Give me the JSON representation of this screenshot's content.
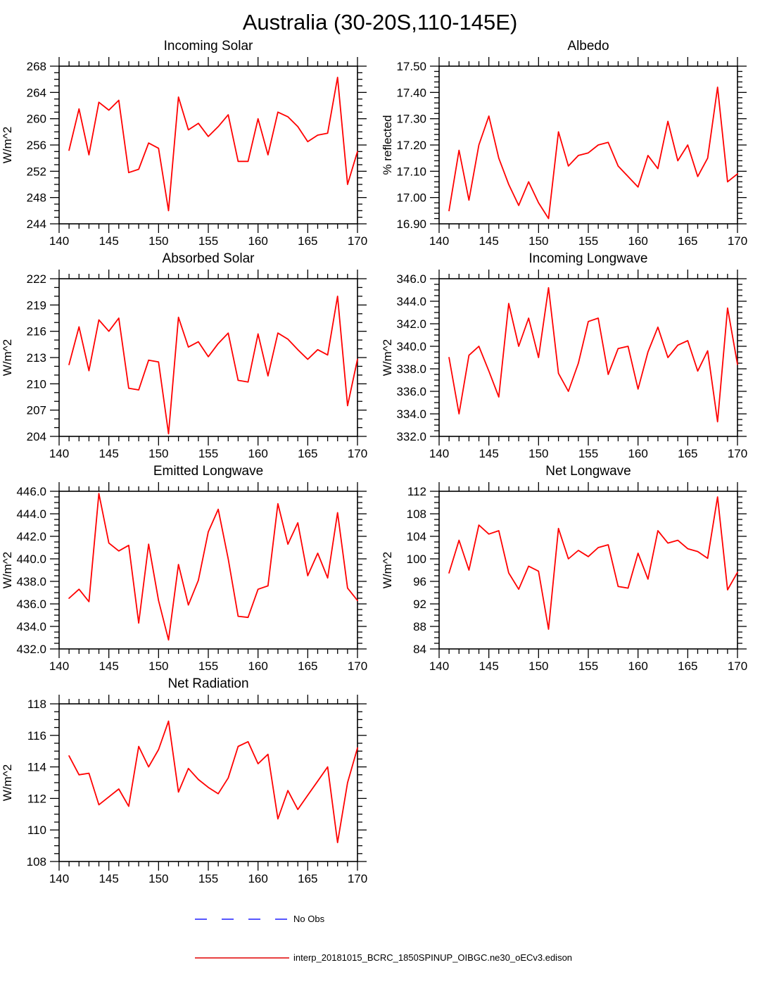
{
  "page": {
    "title": "Australia (30-20S,110-145E)"
  },
  "colors": {
    "line": "#ff0000",
    "axis": "#000000",
    "background": "#ffffff",
    "no_obs": "#1f1fff"
  },
  "chart_data": [
    {
      "type": "line",
      "title": "Incoming Solar",
      "ylabel": "W/m^2",
      "xlim": [
        140,
        170
      ],
      "ylim": [
        244,
        268
      ],
      "xtick_step": 5,
      "ytick_step": 4,
      "ytick_decimals": 0,
      "xminor_per_major": 4,
      "yminor_per_major": 3,
      "line_color": "#ff0000",
      "x": [
        141,
        142,
        143,
        144,
        145,
        146,
        147,
        148,
        149,
        150,
        151,
        152,
        153,
        154,
        155,
        156,
        157,
        158,
        159,
        160,
        161,
        162,
        163,
        164,
        165,
        166,
        167,
        168,
        169,
        170
      ],
      "values": [
        255.2,
        261.5,
        254.5,
        262.5,
        261.3,
        262.8,
        251.8,
        252.3,
        256.3,
        255.5,
        246.0,
        263.3,
        258.3,
        259.3,
        257.3,
        258.8,
        260.6,
        253.5,
        253.5,
        260.0,
        254.5,
        261.0,
        260.3,
        258.8,
        256.5,
        257.5,
        257.8,
        266.3,
        250.0,
        255.0
      ]
    },
    {
      "type": "line",
      "title": "Albedo",
      "ylabel": "% reflected",
      "xlim": [
        140,
        170
      ],
      "ylim": [
        16.9,
        17.5
      ],
      "xtick_step": 5,
      "ytick_step": 0.1,
      "ytick_decimals": 2,
      "xminor_per_major": 4,
      "yminor_per_major": 4,
      "line_color": "#ff0000",
      "x": [
        141,
        142,
        143,
        144,
        145,
        146,
        147,
        148,
        149,
        150,
        151,
        152,
        153,
        154,
        155,
        156,
        157,
        158,
        159,
        160,
        161,
        162,
        163,
        164,
        165,
        166,
        167,
        168,
        169,
        170
      ],
      "values": [
        16.95,
        17.18,
        16.99,
        17.2,
        17.31,
        17.15,
        17.05,
        16.97,
        17.06,
        16.98,
        16.92,
        17.25,
        17.12,
        17.16,
        17.17,
        17.2,
        17.21,
        17.12,
        17.08,
        17.04,
        17.16,
        17.11,
        17.29,
        17.14,
        17.2,
        17.08,
        17.15,
        17.42,
        17.06,
        17.09
      ]
    },
    {
      "type": "line",
      "title": "Absorbed Solar",
      "ylabel": "W/m^2",
      "xlim": [
        140,
        170
      ],
      "ylim": [
        204,
        222
      ],
      "xtick_step": 5,
      "ytick_step": 3,
      "ytick_decimals": 0,
      "xminor_per_major": 4,
      "yminor_per_major": 2,
      "line_color": "#ff0000",
      "x": [
        141,
        142,
        143,
        144,
        145,
        146,
        147,
        148,
        149,
        150,
        151,
        152,
        153,
        154,
        155,
        156,
        157,
        158,
        159,
        160,
        161,
        162,
        163,
        164,
        165,
        166,
        167,
        168,
        169,
        170
      ],
      "values": [
        212.2,
        216.5,
        211.5,
        217.3,
        216.0,
        217.5,
        209.5,
        209.3,
        212.7,
        212.5,
        204.3,
        217.6,
        214.2,
        214.8,
        213.1,
        214.6,
        215.8,
        210.4,
        210.2,
        215.7,
        210.9,
        215.8,
        215.1,
        213.9,
        212.8,
        213.9,
        213.3,
        220.0,
        207.5,
        212.8
      ]
    },
    {
      "type": "line",
      "title": "Incoming Longwave",
      "ylabel": "W/m^2",
      "xlim": [
        140,
        170
      ],
      "ylim": [
        332.0,
        346.0
      ],
      "xtick_step": 5,
      "ytick_step": 2,
      "ytick_decimals": 1,
      "xminor_per_major": 4,
      "yminor_per_major": 3,
      "line_color": "#ff0000",
      "x": [
        141,
        142,
        143,
        144,
        145,
        146,
        147,
        148,
        149,
        150,
        151,
        152,
        153,
        154,
        155,
        156,
        157,
        158,
        159,
        160,
        161,
        162,
        163,
        164,
        165,
        166,
        167,
        168,
        169,
        170
      ],
      "values": [
        339.0,
        334.0,
        339.2,
        340.0,
        337.8,
        335.5,
        343.8,
        340.0,
        342.5,
        339.0,
        345.2,
        337.6,
        336.0,
        338.5,
        342.2,
        342.5,
        337.5,
        339.8,
        340.0,
        336.2,
        339.5,
        341.7,
        339.0,
        340.1,
        340.5,
        337.8,
        339.6,
        333.3,
        343.4,
        338.4
      ]
    },
    {
      "type": "line",
      "title": "Emitted Longwave",
      "ylabel": "W/m^2",
      "xlim": [
        140,
        170
      ],
      "ylim": [
        432.0,
        446.0
      ],
      "xtick_step": 5,
      "ytick_step": 2,
      "ytick_decimals": 1,
      "xminor_per_major": 4,
      "yminor_per_major": 3,
      "line_color": "#ff0000",
      "x": [
        141,
        142,
        143,
        144,
        145,
        146,
        147,
        148,
        149,
        150,
        151,
        152,
        153,
        154,
        155,
        156,
        157,
        158,
        159,
        160,
        161,
        162,
        163,
        164,
        165,
        166,
        167,
        168,
        169,
        170
      ],
      "values": [
        436.5,
        437.3,
        436.2,
        445.8,
        441.4,
        440.7,
        441.2,
        434.3,
        441.3,
        436.3,
        432.8,
        439.5,
        435.9,
        438.1,
        442.4,
        444.4,
        440.0,
        434.9,
        434.8,
        437.3,
        437.6,
        444.9,
        441.3,
        443.2,
        438.5,
        440.5,
        438.3,
        444.1,
        437.4,
        436.3
      ]
    },
    {
      "type": "line",
      "title": "Net Longwave",
      "ylabel": "W/m^2",
      "xlim": [
        140,
        170
      ],
      "ylim": [
        84,
        112
      ],
      "xtick_step": 5,
      "ytick_step": 4,
      "ytick_decimals": 0,
      "xminor_per_major": 4,
      "yminor_per_major": 3,
      "line_color": "#ff0000",
      "x": [
        141,
        142,
        143,
        144,
        145,
        146,
        147,
        148,
        149,
        150,
        151,
        152,
        153,
        154,
        155,
        156,
        157,
        158,
        159,
        160,
        161,
        162,
        163,
        164,
        165,
        166,
        167,
        168,
        169,
        170
      ],
      "values": [
        97.5,
        103.3,
        98.0,
        106.0,
        104.4,
        105.0,
        97.5,
        94.6,
        98.7,
        97.8,
        87.5,
        105.4,
        100.0,
        101.5,
        100.4,
        102.0,
        102.5,
        95.1,
        94.8,
        101.0,
        96.4,
        105.0,
        102.8,
        103.3,
        101.8,
        101.3,
        100.1,
        111.0,
        94.5,
        97.6
      ]
    },
    {
      "type": "line",
      "title": "Net Radiation",
      "ylabel": "W/m^2",
      "xlim": [
        140,
        170
      ],
      "ylim": [
        108,
        118
      ],
      "xtick_step": 5,
      "ytick_step": 2,
      "ytick_decimals": 0,
      "xminor_per_major": 4,
      "yminor_per_major": 3,
      "line_color": "#ff0000",
      "x": [
        141,
        142,
        143,
        144,
        145,
        146,
        147,
        148,
        149,
        150,
        151,
        152,
        153,
        154,
        155,
        156,
        157,
        158,
        159,
        160,
        161,
        162,
        163,
        164,
        165,
        166,
        167,
        168,
        169,
        170
      ],
      "values": [
        114.7,
        113.5,
        113.6,
        111.6,
        112.1,
        112.6,
        111.5,
        115.3,
        114.0,
        115.1,
        116.9,
        112.4,
        113.9,
        113.2,
        112.7,
        112.3,
        113.3,
        115.3,
        115.6,
        114.2,
        114.8,
        110.7,
        112.5,
        111.3,
        112.2,
        113.1,
        114.0,
        109.2,
        113.0,
        115.2
      ]
    }
  ],
  "legend": {
    "entries": [
      {
        "label": "No Obs",
        "color": "#1f1fff",
        "dash": "17 21"
      },
      {
        "label": "interp_20181015_BCRC_1850SPINUP_OIBGC.ne30_oECv3.edison",
        "color": "#e10000",
        "dash": null
      }
    ]
  }
}
